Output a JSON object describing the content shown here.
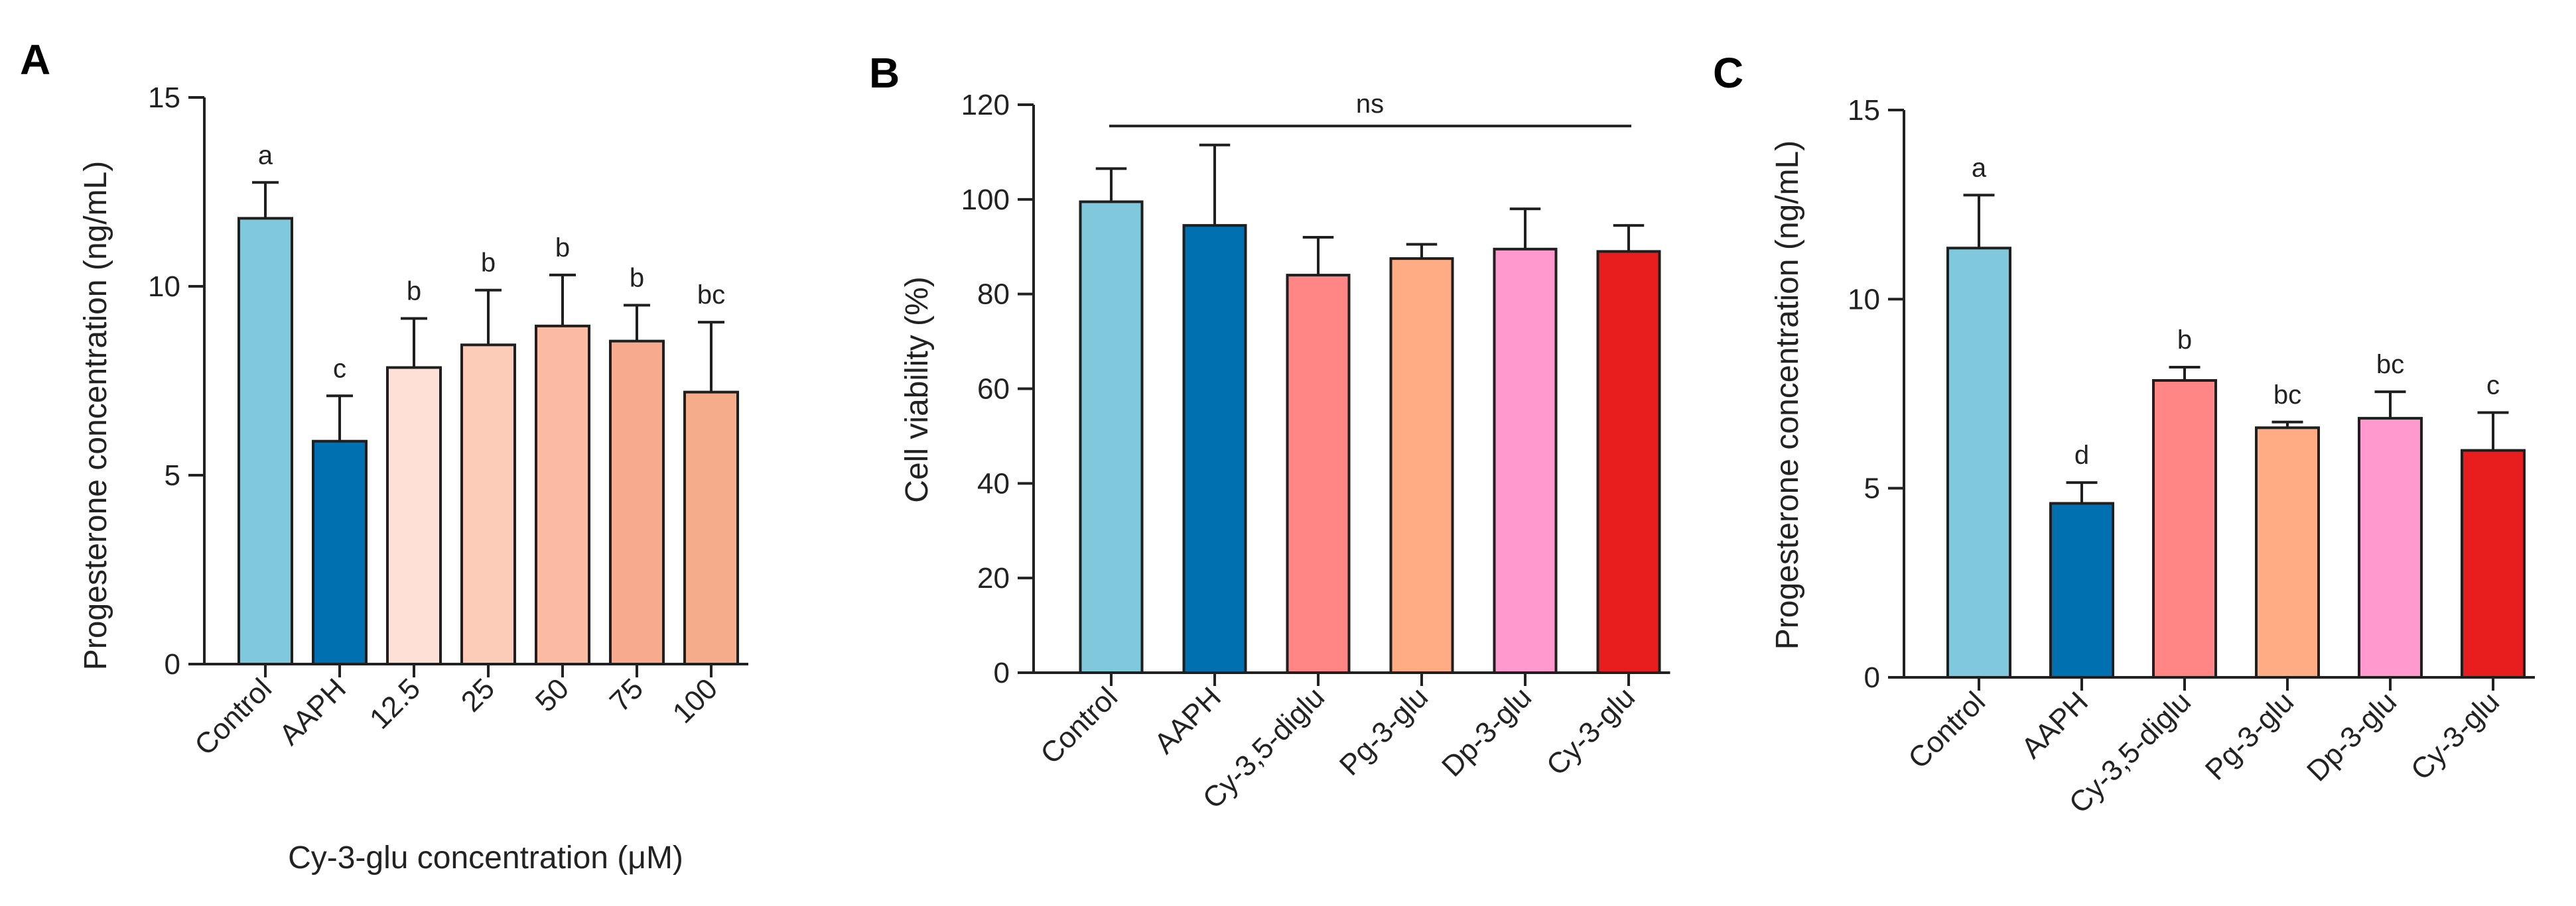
{
  "chart_data": [
    {
      "panel": "A",
      "type": "bar",
      "categories": [
        "Control",
        "AAPH",
        "12.5",
        "25",
        "50",
        "75",
        "100"
      ],
      "values": [
        11.8,
        5.9,
        7.85,
        8.45,
        8.95,
        8.55,
        7.2
      ],
      "errors": [
        0.95,
        1.2,
        1.3,
        1.45,
        1.35,
        0.95,
        1.85
      ],
      "significance": [
        "a",
        "c",
        "b",
        "b",
        "b",
        "b",
        "bc"
      ],
      "colors": [
        "#80C8DC",
        "#0070B0",
        "#FEE0D6",
        "#FDCCB8",
        "#FBBBA3",
        "#F8AA8F",
        "#F5AC8B"
      ],
      "xlabel": "Cy-3-glu concentration (μM)",
      "ylabel": "Progesterone concentration (ng/mL)",
      "ylim": [
        0,
        15
      ],
      "yticks": [
        0,
        5,
        10,
        15
      ],
      "grid": false
    },
    {
      "panel": "B",
      "type": "bar",
      "categories": [
        "Control",
        "AAPH",
        "Cy-3,5-diglu",
        "Pg-3-glu",
        "Dp-3-glu",
        "Cy-3-glu"
      ],
      "values": [
        99.5,
        94.5,
        84,
        87.5,
        89.5,
        89
      ],
      "errors": [
        7,
        17,
        8,
        3,
        8.5,
        5.5
      ],
      "colors": [
        "#80C8DC",
        "#0070B0",
        "#FF8685",
        "#FFAC85",
        "#FF99CE",
        "#E81E1E"
      ],
      "xlabel": "",
      "ylabel": "Cell viability (%)",
      "ylim": [
        0,
        120
      ],
      "yticks": [
        0,
        20,
        40,
        60,
        80,
        100,
        120
      ],
      "annotation": "ns",
      "grid": false
    },
    {
      "panel": "C",
      "type": "bar",
      "categories": [
        "Control",
        "AAPH",
        "Cy-3,5-diglu",
        "Pg-3-glu",
        "Dp-3-glu",
        "Cy-3-glu"
      ],
      "values": [
        11.35,
        4.6,
        7.85,
        6.6,
        6.85,
        6.0
      ],
      "errors": [
        1.4,
        0.55,
        0.35,
        0.15,
        0.7,
        1.0
      ],
      "significance": [
        "a",
        "d",
        "b",
        "bc",
        "bc",
        "c"
      ],
      "colors": [
        "#80C8DC",
        "#0070B0",
        "#FF8685",
        "#FFAC85",
        "#FF99CE",
        "#E81E1E"
      ],
      "xlabel": "",
      "ylabel": "Progesterone concentration (ng/mL)",
      "ylim": [
        0,
        15
      ],
      "yticks": [
        0,
        5,
        10,
        15
      ],
      "grid": false
    }
  ]
}
